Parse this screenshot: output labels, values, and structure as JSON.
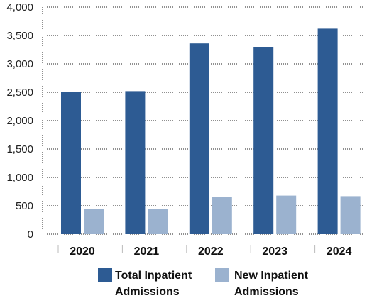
{
  "chart_data": {
    "type": "bar",
    "categories": [
      "2020",
      "2021",
      "2022",
      "2023",
      "2024"
    ],
    "series": [
      {
        "name": "Total Inpatient Admissions",
        "values": [
          2510,
          2520,
          3360,
          3300,
          3620
        ],
        "color": "#2d5b93"
      },
      {
        "name": "New Inpatient Admissions",
        "values": [
          445,
          450,
          650,
          680,
          670
        ],
        "color": "#9bb2cf"
      }
    ],
    "ylim": [
      0,
      4000
    ],
    "yticks": [
      "0",
      "500",
      "1,000",
      "1,500",
      "2,000",
      "2,500",
      "3,000",
      "3,500",
      "4,000"
    ],
    "ytick_values": [
      0,
      500,
      1000,
      1500,
      2000,
      2500,
      3000,
      3500,
      4000
    ],
    "grid": true,
    "legend_position": "bottom"
  }
}
